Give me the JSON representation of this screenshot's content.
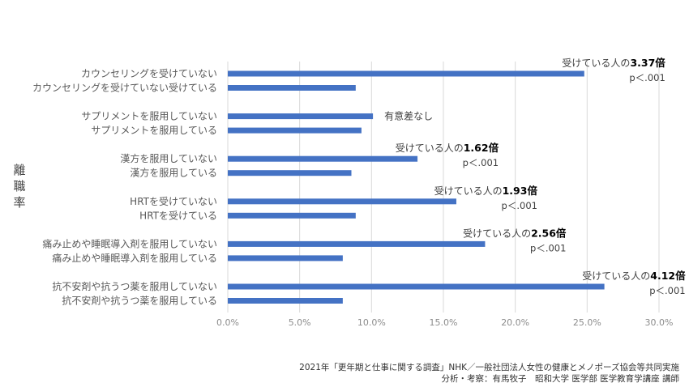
{
  "chart_data": {
    "type": "bar",
    "orientation": "horizontal",
    "ylabel": "離\n職\n率",
    "xlim": [
      0,
      30
    ],
    "xticks": [
      "0.0%",
      "5.0%",
      "10.0%",
      "15.0%",
      "20.0%",
      "25.0%",
      "30.0%"
    ],
    "grid": true,
    "groups": [
      {
        "categories": [
          "カウンセリングを受けていない",
          "カウンセリングを受けていない受けている"
        ],
        "values": [
          24.8,
          8.9
        ],
        "note_prefix": "受けている人の",
        "note_bold": "3.37倍",
        "note_p": "p＜.001"
      },
      {
        "categories": [
          "サプリメントを服用していない",
          "サプリメントを服用している"
        ],
        "values": [
          10.1,
          9.3
        ],
        "note_prefix": "有意差なし",
        "note_bold": "",
        "note_p": ""
      },
      {
        "categories": [
          "漢方を服用していない",
          "漢方を服用している"
        ],
        "values": [
          13.2,
          8.6
        ],
        "note_prefix": "受けている人の",
        "note_bold": "1.62倍",
        "note_p": "p＜.001"
      },
      {
        "categories": [
          "HRTを受けていない",
          "HRTを受けている"
        ],
        "values": [
          15.9,
          8.9
        ],
        "note_prefix": "受けている人の",
        "note_bold": "1.93倍",
        "note_p": "p＜.001"
      },
      {
        "categories": [
          "痛み止めや睡眠導入剤を服用していない",
          "痛み止めや睡眠導入剤を服用している"
        ],
        "values": [
          17.9,
          8.0
        ],
        "note_prefix": "受けている人の",
        "note_bold": "2.56倍",
        "note_p": "p＜.001"
      },
      {
        "categories": [
          "抗不安剤や抗うつ薬を服用していない",
          "抗不安剤や抗うつ薬を服用している"
        ],
        "values": [
          26.2,
          8.0
        ],
        "note_prefix": "受けている人の",
        "note_bold": "4.12倍",
        "note_p": "p＜.001"
      }
    ],
    "bar_color": "#4472c4"
  },
  "footer": {
    "line1": "2021年「更年期と仕事に関する調査」NHK／一般社団法人女性の健康とメノポーズ協会等共同実施",
    "line2": "分析・考察：有馬牧子　昭和大学 医学部 医学教育学講座 講師"
  }
}
